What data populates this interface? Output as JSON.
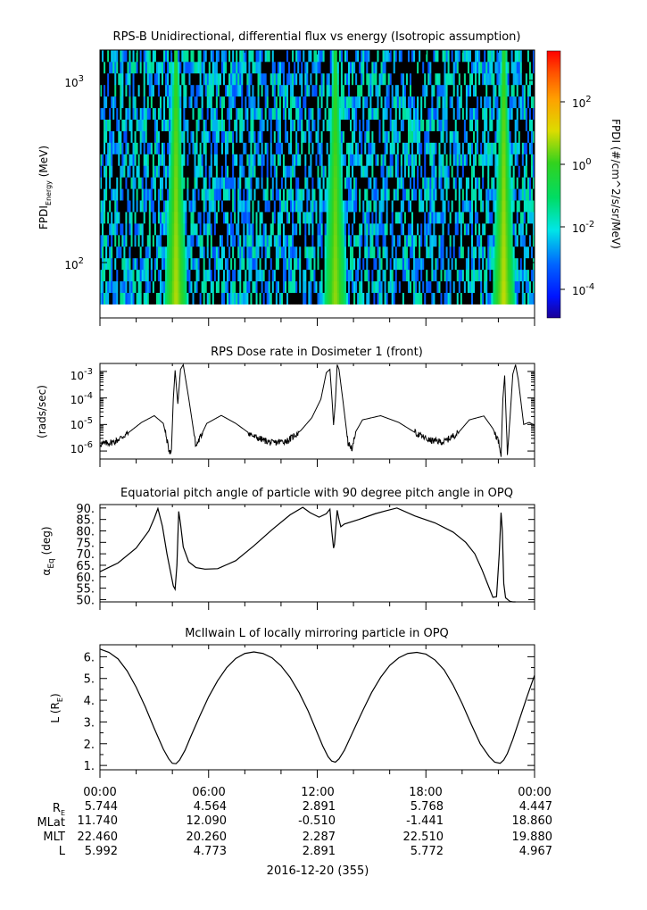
{
  "panels": [
    {
      "id": "spectrogram",
      "title": "RPS-B  Unidirectional, differential flux vs energy (Isotropic assumption)",
      "ylabel_main": "FPDI",
      "ylabel_sub": "Energy",
      "ylabel_unit": " (MeV)",
      "colorbar_label": "FPDI (#/cm^2/s/sr/MeV)",
      "colorbar_ticks": [
        {
          "base": "10",
          "exp": "2"
        },
        {
          "base": "10",
          "exp": "0"
        },
        {
          "base": "10",
          "exp": "-2"
        },
        {
          "base": "10",
          "exp": "-4"
        }
      ],
      "y_ticks": [
        {
          "base": "10",
          "exp": "3"
        },
        {
          "base": "10",
          "exp": "2"
        }
      ]
    },
    {
      "id": "dose",
      "title": "RPS  Dose rate in Dosimeter 1 (front)",
      "ylabel": "(rads/sec)",
      "y_ticks": [
        {
          "base": "10",
          "exp": "-3"
        },
        {
          "base": "10",
          "exp": "-4"
        },
        {
          "base": "10",
          "exp": "-5"
        },
        {
          "base": "10",
          "exp": "-6"
        }
      ]
    },
    {
      "id": "pitch",
      "title": "Equatorial pitch angle of particle with 90 degree pitch angle in OPQ",
      "ylabel_main": "α",
      "ylabel_sub": "Eq",
      "ylabel_unit": " (deg)",
      "y_ticks": [
        "90.",
        "85.",
        "80.",
        "75.",
        "70.",
        "65.",
        "60.",
        "55.",
        "50."
      ]
    },
    {
      "id": "lshell",
      "title": "McIlwain L of locally mirroring particle in OPQ",
      "ylabel_main": "L (R",
      "ylabel_sub": "E",
      "ylabel_unit": ")",
      "y_ticks": [
        "6.",
        "5.",
        "4.",
        "3.",
        "2.",
        "1."
      ]
    }
  ],
  "time_ticks": [
    "00:00",
    "06:00",
    "12:00",
    "18:00",
    "00:00"
  ],
  "ephemeris": {
    "rows": [
      {
        "label": "R",
        "sub": "E",
        "values": [
          "5.744",
          "4.564",
          "2.891",
          "5.768",
          "4.447"
        ]
      },
      {
        "label": "MLat",
        "sub": "",
        "values": [
          "11.740",
          "12.090",
          "-0.510",
          "-1.441",
          "18.860"
        ]
      },
      {
        "label": "MLT",
        "sub": "",
        "values": [
          "22.460",
          "20.260",
          "2.287",
          "22.510",
          "19.880"
        ]
      },
      {
        "label": "L",
        "sub": "",
        "values": [
          "5.992",
          "4.773",
          "2.891",
          "5.772",
          "4.967"
        ]
      }
    ],
    "date_label": "2016-12-20 (355)"
  },
  "chart_data": [
    {
      "type": "heatmap",
      "title": "RPS-B  Unidirectional, differential flux vs energy (Isotropic assumption)",
      "xlabel": "",
      "ylabel": "FPDI Energy (MeV)",
      "x_range_hours": [
        0,
        24
      ],
      "y_range_mev": [
        55,
        1400
      ],
      "y_scale": "log",
      "colorbar_range": [
        1e-05,
        3000
      ],
      "colorbar_scale": "log",
      "colormap": "rainbow (blue to red)",
      "high_flux_bands_hours": [
        {
          "center": 4.2,
          "peak_log_flux": 0.8
        },
        {
          "center": 13.0,
          "peak_log_flux": 0.6
        },
        {
          "center": 22.3,
          "peak_log_flux": 0.9
        }
      ],
      "background": "sparse low flux (black/blue/cyan)"
    },
    {
      "type": "line",
      "title": "RPS  Dose rate in Dosimeter 1 (front)",
      "ylabel": "(rads/sec)",
      "y_scale": "log",
      "ylim": [
        5e-07,
        0.002
      ],
      "x_hours": [
        0,
        0.8,
        1.5,
        2.3,
        3.0,
        3.5,
        3.75,
        3.85,
        3.95,
        4.05,
        4.15,
        4.3,
        4.45,
        4.6,
        4.9,
        5.3,
        5.9,
        6.7,
        7.5,
        8.5,
        9.5,
        10.4,
        11.1,
        11.7,
        12.2,
        12.5,
        12.7,
        12.82,
        12.9,
        13.0,
        13.1,
        13.2,
        13.4,
        13.7,
        13.95,
        14.1,
        14.5,
        15.5,
        16.5,
        17.5,
        18.2,
        19.0,
        19.8,
        20.4,
        21.2,
        21.7,
        22.0,
        22.15,
        22.25,
        22.35,
        22.5,
        22.65,
        22.8,
        22.95,
        23.1,
        23.4,
        23.7,
        24
      ],
      "y_rads_per_sec": [
        1.8e-06,
        2.2e-06,
        4.5e-06,
        1.2e-05,
        2.15e-05,
        1.1e-05,
        1.8e-06,
        8e-07,
        1.2e-06,
        9e-05,
        0.0011,
        6e-05,
        0.0012,
        0.0018,
        0.0001,
        1.5e-06,
        1.1e-05,
        2.2e-05,
        1.1e-05,
        3.5e-06,
        2e-06,
        2.5e-06,
        6e-06,
        1.8e-05,
        9e-05,
        0.0009,
        0.0012,
        8e-05,
        9.5e-06,
        7e-05,
        0.0018,
        0.0012,
        0.0001,
        2e-06,
        1.2e-06,
        5e-06,
        1.5e-05,
        2.15e-05,
        1.2e-05,
        4.5e-06,
        2.5e-06,
        2.2e-06,
        5e-06,
        1.5e-05,
        2.1e-05,
        7e-06,
        2.5e-06,
        8e-07,
        9e-05,
        0.0007,
        8e-07,
        2e-05,
        0.0008,
        0.0018,
        0.0005,
        1e-05,
        1.2e-05,
        9.5e-06
      ]
    },
    {
      "type": "line",
      "title": "Equatorial pitch angle of particle with 90 degree pitch angle in OPQ",
      "ylabel": "αEq (deg)",
      "ylim": [
        49,
        91.5
      ],
      "x_hours": [
        0,
        1.0,
        2.0,
        2.7,
        3.0,
        3.2,
        3.45,
        3.7,
        3.95,
        4.05,
        4.15,
        4.25,
        4.35,
        4.45,
        4.6,
        4.9,
        5.3,
        5.8,
        6.5,
        7.5,
        8.5,
        9.5,
        10.5,
        11.2,
        11.6,
        12.1,
        12.5,
        12.7,
        12.8,
        12.9,
        12.95,
        13.1,
        13.2,
        13.3,
        13.5,
        14.3,
        15.2,
        15.8,
        16.4,
        17.4,
        18.5,
        19.5,
        20.2,
        20.7,
        21.1,
        21.4,
        21.7,
        21.9,
        22.05,
        22.15,
        22.22,
        22.3,
        22.4,
        22.55,
        22.65,
        22.8,
        22.95
      ],
      "y_deg": [
        62.2,
        66.0,
        72.5,
        80.0,
        85.5,
        89.8,
        82.0,
        70.0,
        60.0,
        56.0,
        54.5,
        65.0,
        88.5,
        83.0,
        73.0,
        66.5,
        64.0,
        63.3,
        63.5,
        67.0,
        73.5,
        80.5,
        87.0,
        90.3,
        88.0,
        86.0,
        87.5,
        89.5,
        80.0,
        72.5,
        74.0,
        89.0,
        85.0,
        81.8,
        83.0,
        85.0,
        87.5,
        88.8,
        90.0,
        86.5,
        83.5,
        79.5,
        75.0,
        70.0,
        63.0,
        57.0,
        51.0,
        51.3,
        70.0,
        88.0,
        80.0,
        57.0,
        50.8,
        49.8,
        49.2,
        48.5,
        48.0
      ]
    },
    {
      "type": "line",
      "title": "McIlwain L of locally mirroring particle in OPQ",
      "ylabel": "L (RE)",
      "ylim": [
        0.8,
        6.55
      ],
      "x_hours": [
        0,
        0.5,
        1.0,
        1.5,
        2.0,
        2.5,
        3.0,
        3.5,
        3.8,
        4.0,
        4.2,
        4.4,
        4.7,
        5.0,
        5.5,
        6.0,
        6.5,
        7.0,
        7.5,
        8.0,
        8.5,
        9.0,
        9.5,
        10.0,
        10.5,
        11.0,
        11.5,
        12.0,
        12.3,
        12.6,
        12.8,
        13.0,
        13.2,
        13.5,
        14.0,
        14.5,
        15.0,
        15.5,
        16.0,
        16.5,
        17.0,
        17.5,
        18.0,
        18.5,
        19.0,
        19.5,
        20.0,
        20.5,
        21.0,
        21.5,
        21.8,
        22.1,
        22.3,
        22.5,
        22.8,
        23.2,
        23.6,
        24.0
      ],
      "y_RE": [
        6.35,
        6.2,
        5.9,
        5.35,
        4.6,
        3.7,
        2.7,
        1.75,
        1.3,
        1.1,
        1.08,
        1.25,
        1.7,
        2.3,
        3.25,
        4.15,
        4.9,
        5.5,
        5.92,
        6.15,
        6.22,
        6.15,
        5.95,
        5.58,
        5.05,
        4.35,
        3.5,
        2.5,
        1.9,
        1.4,
        1.2,
        1.15,
        1.3,
        1.7,
        2.6,
        3.5,
        4.35,
        5.05,
        5.6,
        5.95,
        6.15,
        6.2,
        6.12,
        5.85,
        5.4,
        4.7,
        3.85,
        2.9,
        2.0,
        1.4,
        1.15,
        1.1,
        1.25,
        1.55,
        2.2,
        3.2,
        4.2,
        5.15
      ]
    }
  ]
}
